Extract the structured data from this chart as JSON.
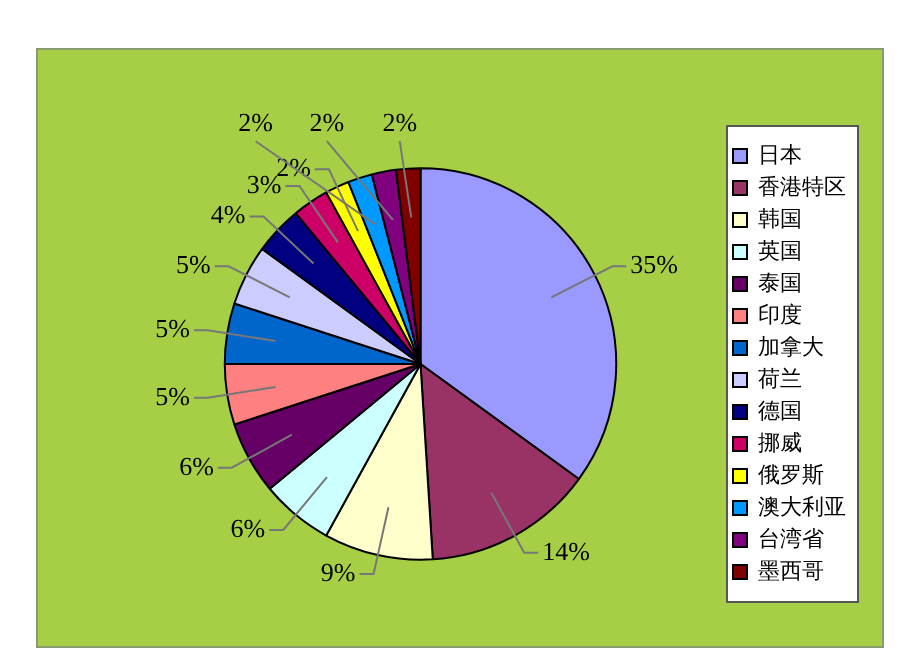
{
  "chart_data": {
    "type": "pie",
    "categories": [
      "日本",
      "香港特区",
      "韩国",
      "英国",
      "泰国",
      "印度",
      "加拿大",
      "荷兰",
      "德国",
      "挪威",
      "俄罗斯",
      "澳大利亚",
      "台湾省",
      "墨西哥"
    ],
    "values": [
      35,
      14,
      9,
      6,
      6,
      5,
      5,
      5,
      4,
      3,
      2,
      2,
      2,
      2
    ],
    "value_labels": [
      "35%",
      "14%",
      "9%",
      "6%",
      "6%",
      "5%",
      "5%",
      "5%",
      "4%",
      "3%",
      "2%",
      "2%",
      "2%",
      "2%"
    ],
    "colors": [
      "#9999ff",
      "#993366",
      "#ffffcc",
      "#ccffff",
      "#660066",
      "#ff8080",
      "#0066cc",
      "#ccccff",
      "#000080",
      "#cc0066",
      "#ffff00",
      "#0099ff",
      "#800080",
      "#800000"
    ],
    "legend": "right"
  }
}
